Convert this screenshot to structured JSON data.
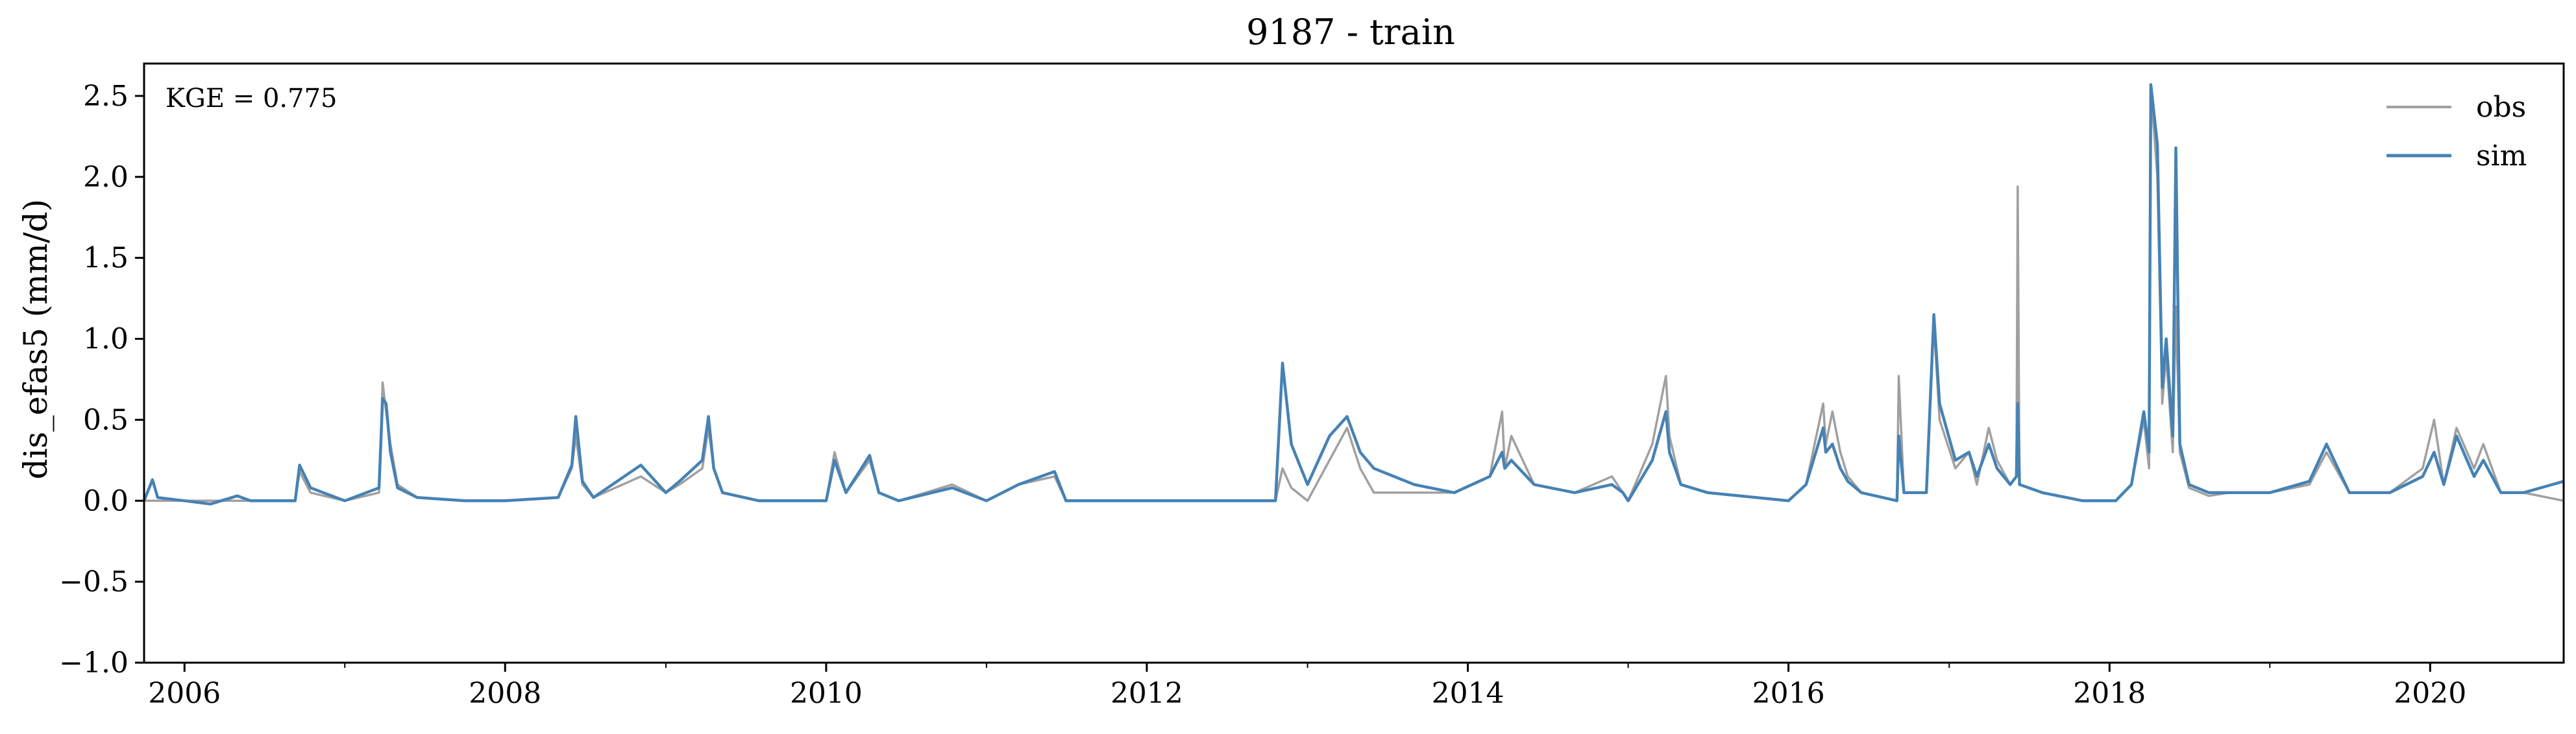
{
  "chart_data": {
    "type": "line",
    "title": "9187 - train",
    "xlabel": "",
    "ylabel": "dis_efas5 (mm/d)",
    "annotation": "KGE = 0.775",
    "xlim": [
      "2005-10-01",
      "2020-10-31"
    ],
    "ylim": [
      -1.0,
      2.7
    ],
    "x_ticks": [
      "2006",
      "2008",
      "2010",
      "2012",
      "2014",
      "2016",
      "2018",
      "2020"
    ],
    "y_ticks": [
      "−1.0",
      "−0.5",
      "0.0",
      "0.5",
      "1.0",
      "1.5",
      "2.0",
      "2.5"
    ],
    "grid": false,
    "legend_position": "top-right",
    "colors": {
      "obs": "#a0a0a0",
      "sim": "#4682b4"
    },
    "series": [
      {
        "name": "obs",
        "x": [
          "2005-10-01",
          "2006-01-01",
          "2006-06-01",
          "2006-09-10",
          "2006-09-20",
          "2006-10-15",
          "2007-01-01",
          "2007-03-20",
          "2007-03-28",
          "2007-04-05",
          "2007-04-15",
          "2007-05-01",
          "2007-06-15",
          "2007-10-01",
          "2008-01-01",
          "2008-05-01",
          "2008-06-01",
          "2008-06-10",
          "2008-06-25",
          "2008-07-20",
          "2008-11-05",
          "2009-01-01",
          "2009-02-01",
          "2009-03-25",
          "2009-04-08",
          "2009-04-20",
          "2009-05-10",
          "2009-08-01",
          "2010-01-01",
          "2010-01-20",
          "2010-02-15",
          "2010-04-10",
          "2010-05-01",
          "2010-06-15",
          "2010-10-15",
          "2011-01-01",
          "2011-03-15",
          "2011-06-05",
          "2011-07-01",
          "2012-01-01",
          "2012-06-01",
          "2012-10-20",
          "2012-11-05",
          "2012-11-25",
          "2013-01-01",
          "2013-02-20",
          "2013-04-01",
          "2013-05-01",
          "2013-06-01",
          "2013-09-01",
          "2013-12-01",
          "2014-02-20",
          "2014-03-20",
          "2014-03-26",
          "2014-04-10",
          "2014-06-01",
          "2014-09-01",
          "2014-11-25",
          "2014-12-20",
          "2015-01-01",
          "2015-02-25",
          "2015-03-28",
          "2015-04-05",
          "2015-05-01",
          "2015-07-01",
          "2016-01-01",
          "2016-02-10",
          "2016-03-20",
          "2016-03-26",
          "2016-04-10",
          "2016-04-28",
          "2016-05-15",
          "2016-06-15",
          "2016-09-04",
          "2016-09-08",
          "2016-09-20",
          "2016-11-10",
          "2016-11-27",
          "2016-12-10",
          "2017-01-15",
          "2017-02-15",
          "2017-03-05",
          "2017-04-01",
          "2017-04-20",
          "2017-05-20",
          "2017-06-03",
          "2017-06-06",
          "2017-06-10",
          "2017-08-01",
          "2017-11-01",
          "2018-01-15",
          "2018-02-20",
          "2018-03-20",
          "2018-04-01",
          "2018-04-05",
          "2018-04-20",
          "2018-05-01",
          "2018-05-10",
          "2018-05-25",
          "2018-06-01",
          "2018-06-10",
          "2018-07-01",
          "2018-08-15",
          "2018-10-01",
          "2019-01-01",
          "2019-04-01",
          "2019-05-10",
          "2019-07-01",
          "2019-10-01",
          "2019-12-15",
          "2020-01-10",
          "2020-02-01",
          "2020-03-01",
          "2020-04-10",
          "2020-05-01",
          "2020-06-10",
          "2020-08-01",
          "2020-10-31"
        ],
        "y": [
          0.0,
          0.0,
          0.0,
          0.0,
          0.18,
          0.05,
          0.0,
          0.05,
          0.73,
          0.55,
          0.35,
          0.1,
          0.02,
          0.0,
          0.0,
          0.02,
          0.2,
          0.4,
          0.1,
          0.02,
          0.15,
          0.05,
          0.1,
          0.2,
          0.45,
          0.2,
          0.05,
          0.0,
          0.0,
          0.3,
          0.05,
          0.25,
          0.05,
          0.0,
          0.1,
          0.0,
          0.1,
          0.15,
          0.0,
          0.0,
          0.0,
          0.0,
          0.2,
          0.08,
          0.0,
          0.25,
          0.45,
          0.2,
          0.05,
          0.05,
          0.05,
          0.15,
          0.55,
          0.2,
          0.4,
          0.1,
          0.05,
          0.15,
          0.05,
          0.0,
          0.35,
          0.77,
          0.4,
          0.1,
          0.05,
          0.0,
          0.1,
          0.6,
          0.35,
          0.55,
          0.3,
          0.15,
          0.05,
          0.0,
          0.77,
          0.05,
          0.05,
          1.1,
          0.5,
          0.2,
          0.3,
          0.1,
          0.45,
          0.25,
          0.1,
          0.15,
          1.94,
          0.1,
          0.05,
          0.0,
          0.0,
          0.1,
          0.5,
          0.2,
          2.55,
          2.0,
          0.6,
          0.9,
          0.3,
          1.2,
          0.3,
          0.08,
          0.03,
          0.05,
          0.05,
          0.1,
          0.3,
          0.05,
          0.05,
          0.2,
          0.5,
          0.1,
          0.45,
          0.2,
          0.35,
          0.05,
          0.05,
          0.0
        ]
      },
      {
        "name": "sim",
        "x": [
          "2005-10-01",
          "2005-10-20",
          "2005-11-01",
          "2006-01-01",
          "2006-03-01",
          "2006-05-01",
          "2006-06-01",
          "2006-09-10",
          "2006-09-20",
          "2006-10-15",
          "2007-01-01",
          "2007-03-20",
          "2007-03-28",
          "2007-04-05",
          "2007-04-15",
          "2007-05-01",
          "2007-06-15",
          "2007-10-01",
          "2008-01-01",
          "2008-05-01",
          "2008-06-01",
          "2008-06-10",
          "2008-06-25",
          "2008-07-20",
          "2008-11-05",
          "2009-01-01",
          "2009-02-01",
          "2009-03-25",
          "2009-04-08",
          "2009-04-20",
          "2009-05-10",
          "2009-08-01",
          "2010-01-01",
          "2010-01-20",
          "2010-02-15",
          "2010-04-10",
          "2010-05-01",
          "2010-06-15",
          "2010-10-15",
          "2011-01-01",
          "2011-03-15",
          "2011-06-05",
          "2011-07-01",
          "2012-01-01",
          "2012-06-01",
          "2012-10-20",
          "2012-11-05",
          "2012-11-25",
          "2013-01-01",
          "2013-02-20",
          "2013-04-01",
          "2013-05-01",
          "2013-06-01",
          "2013-09-01",
          "2013-12-01",
          "2014-02-20",
          "2014-03-20",
          "2014-03-26",
          "2014-04-10",
          "2014-06-01",
          "2014-09-01",
          "2014-11-25",
          "2014-12-20",
          "2015-01-01",
          "2015-02-25",
          "2015-03-28",
          "2015-04-05",
          "2015-05-01",
          "2015-07-01",
          "2016-01-01",
          "2016-02-10",
          "2016-03-20",
          "2016-03-26",
          "2016-04-10",
          "2016-04-28",
          "2016-05-15",
          "2016-06-15",
          "2016-09-04",
          "2016-09-08",
          "2016-09-20",
          "2016-11-10",
          "2016-11-27",
          "2016-12-10",
          "2017-01-15",
          "2017-02-15",
          "2017-03-05",
          "2017-04-01",
          "2017-04-20",
          "2017-05-20",
          "2017-06-03",
          "2017-06-06",
          "2017-06-10",
          "2017-08-01",
          "2017-11-01",
          "2018-01-15",
          "2018-02-20",
          "2018-03-20",
          "2018-04-01",
          "2018-04-05",
          "2018-04-20",
          "2018-05-01",
          "2018-05-10",
          "2018-05-25",
          "2018-06-01",
          "2018-06-10",
          "2018-07-01",
          "2018-08-15",
          "2018-10-01",
          "2019-01-01",
          "2019-04-01",
          "2019-05-10",
          "2019-07-01",
          "2019-10-01",
          "2019-12-15",
          "2020-01-10",
          "2020-02-01",
          "2020-03-01",
          "2020-04-10",
          "2020-05-01",
          "2020-06-10",
          "2020-08-01",
          "2020-10-31"
        ],
        "y": [
          0.0,
          0.13,
          0.02,
          0.0,
          -0.02,
          0.03,
          0.0,
          0.0,
          0.22,
          0.08,
          0.0,
          0.08,
          0.63,
          0.6,
          0.3,
          0.08,
          0.02,
          0.0,
          0.0,
          0.02,
          0.22,
          0.52,
          0.12,
          0.02,
          0.22,
          0.05,
          0.12,
          0.25,
          0.52,
          0.2,
          0.05,
          0.0,
          0.0,
          0.25,
          0.05,
          0.28,
          0.05,
          0.0,
          0.08,
          0.0,
          0.1,
          0.18,
          0.0,
          0.0,
          0.0,
          0.0,
          0.85,
          0.35,
          0.1,
          0.4,
          0.52,
          0.3,
          0.2,
          0.1,
          0.05,
          0.15,
          0.3,
          0.2,
          0.25,
          0.1,
          0.05,
          0.1,
          0.05,
          0.0,
          0.25,
          0.55,
          0.3,
          0.1,
          0.05,
          0.0,
          0.1,
          0.45,
          0.3,
          0.35,
          0.2,
          0.12,
          0.05,
          0.0,
          0.4,
          0.05,
          0.05,
          1.15,
          0.6,
          0.25,
          0.3,
          0.15,
          0.35,
          0.2,
          0.1,
          0.15,
          0.6,
          0.1,
          0.05,
          0.0,
          0.0,
          0.1,
          0.55,
          0.3,
          2.57,
          2.2,
          0.7,
          1.0,
          0.4,
          2.18,
          0.35,
          0.1,
          0.05,
          0.05,
          0.05,
          0.12,
          0.35,
          0.05,
          0.05,
          0.15,
          0.3,
          0.1,
          0.4,
          0.15,
          0.25,
          0.05,
          0.05,
          0.12
        ]
      }
    ]
  }
}
